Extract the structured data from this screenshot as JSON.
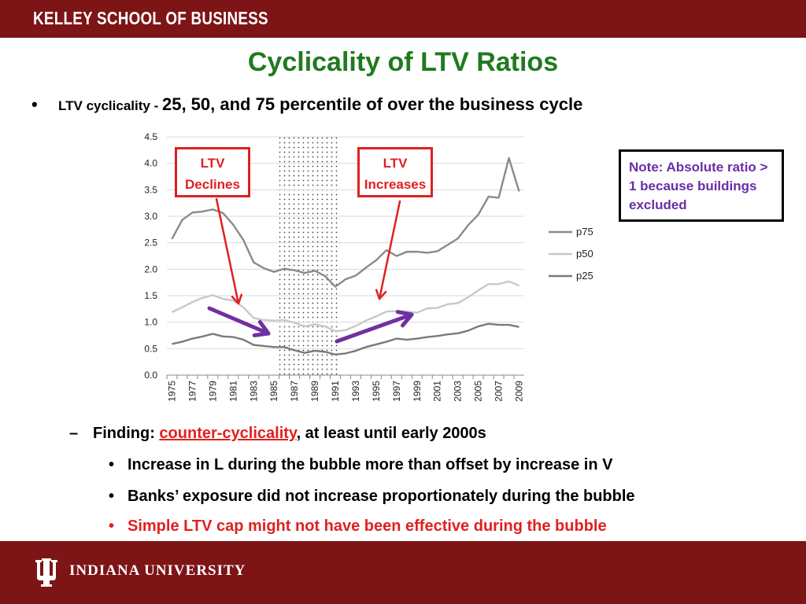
{
  "header": {
    "school": "KELLEY SCHOOL OF BUSINESS"
  },
  "title": "Cyclicality of LTV Ratios",
  "bullet_main": {
    "small": "LTV cyclicality - ",
    "large": "25, 50, and 75 percentile of over the business cycle"
  },
  "note": {
    "text": "Note:  Absolute ratio > 1 because buildings excluded"
  },
  "annotations": {
    "declines": [
      "LTV",
      "Declines"
    ],
    "increases": [
      "LTV",
      "Increases"
    ]
  },
  "finding": {
    "prefix": "Finding: ",
    "highlight": "counter-cyclicality",
    "suffix": ", at least until early 2000s"
  },
  "points": [
    "Increase in L during the bubble more than offset by increase in V",
    "Banks’ exposure did not increase proportionately during the bubble",
    "Simple LTV cap might not have been effective during the bubble"
  ],
  "footer": {
    "university": "INDIANA UNIVERSITY"
  },
  "colors": {
    "brand": "#7d1416",
    "title": "#1f7a1f",
    "accent_red": "#e02020",
    "purple": "#7030a0",
    "p75": "#8a8a8a",
    "p50": "#c8c8c8",
    "p25": "#7a7a7a"
  },
  "chart_data": {
    "type": "line",
    "x": [
      1975,
      1976,
      1977,
      1978,
      1979,
      1980,
      1981,
      1982,
      1983,
      1984,
      1985,
      1986,
      1987,
      1988,
      1989,
      1990,
      1991,
      1992,
      1993,
      1994,
      1995,
      1996,
      1997,
      1998,
      1999,
      2000,
      2001,
      2002,
      2003,
      2004,
      2005,
      2006,
      2007,
      2008,
      2009
    ],
    "x_tick_labels": [
      "1975",
      "1977",
      "1979",
      "1981",
      "1983",
      "1985",
      "1987",
      "1989",
      "1991",
      "1993",
      "1995",
      "1997",
      "1999",
      "2001",
      "2003",
      "2005",
      "2007",
      "2009"
    ],
    "ylim": [
      0,
      4.5
    ],
    "y_ticks": [
      "0.0",
      "0.5",
      "1.0",
      "1.5",
      "2.0",
      "2.5",
      "3.0",
      "3.5",
      "4.0",
      "4.5"
    ],
    "grid": true,
    "legend": "right",
    "shaded_region": [
      1986,
      1991
    ],
    "series": [
      {
        "name": "p75",
        "values": [
          2.57,
          2.93,
          3.07,
          3.09,
          3.13,
          3.06,
          2.84,
          2.55,
          2.13,
          2.02,
          1.95,
          2.01,
          1.98,
          1.93,
          1.97,
          1.87,
          1.67,
          1.81,
          1.88,
          2.03,
          2.17,
          2.36,
          2.25,
          2.33,
          2.33,
          2.31,
          2.34,
          2.46,
          2.58,
          2.83,
          3.03,
          3.37,
          3.35,
          4.1,
          3.47
        ]
      },
      {
        "name": "p50",
        "values": [
          1.19,
          1.28,
          1.38,
          1.46,
          1.51,
          1.44,
          1.41,
          1.28,
          1.08,
          1.04,
          1.03,
          1.04,
          0.99,
          0.92,
          0.96,
          0.92,
          0.83,
          0.85,
          0.93,
          1.03,
          1.11,
          1.2,
          1.21,
          1.2,
          1.18,
          1.26,
          1.27,
          1.34,
          1.36,
          1.47,
          1.6,
          1.72,
          1.72,
          1.77,
          1.69
        ]
      },
      {
        "name": "p25",
        "values": [
          0.59,
          0.63,
          0.69,
          0.73,
          0.78,
          0.73,
          0.72,
          0.67,
          0.57,
          0.55,
          0.53,
          0.53,
          0.47,
          0.42,
          0.46,
          0.44,
          0.39,
          0.41,
          0.46,
          0.53,
          0.58,
          0.63,
          0.69,
          0.67,
          0.69,
          0.72,
          0.74,
          0.77,
          0.79,
          0.84,
          0.92,
          0.97,
          0.95,
          0.95,
          0.91
        ]
      }
    ]
  }
}
